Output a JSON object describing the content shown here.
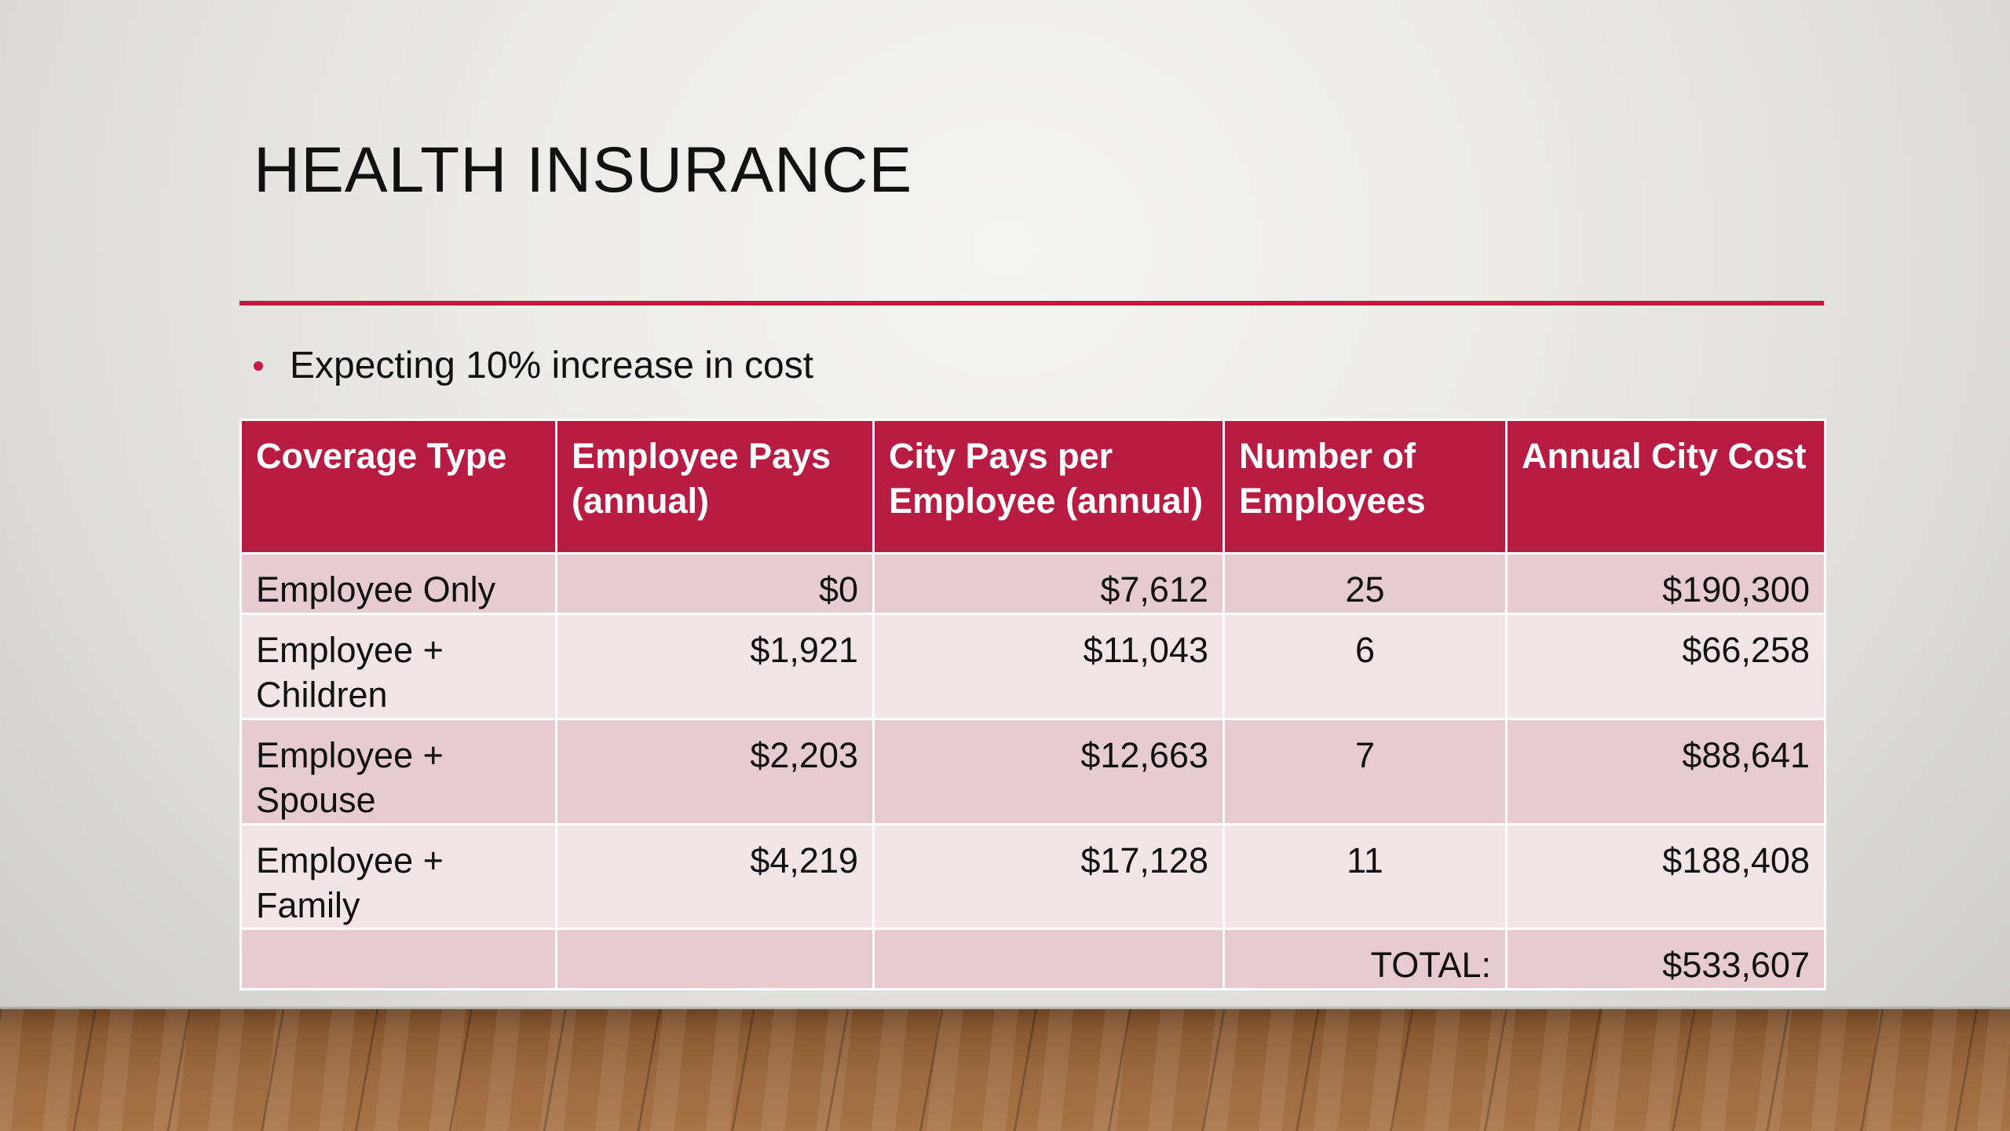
{
  "slide": {
    "title": "HEALTH INSURANCE",
    "bullet": "Expecting 10% increase in cost",
    "accent_color": "#c41a42"
  },
  "table": {
    "headers": [
      "Coverage Type",
      "Employee Pays (annual)",
      "City Pays per Employee (annual)",
      "Number of Employees",
      "Annual City Cost"
    ],
    "rows": [
      {
        "coverage": "Employee Only",
        "employee_pays": "$0",
        "city_pays": "$7,612",
        "count": "25",
        "annual_cost": "$190,300"
      },
      {
        "coverage": "Employee + Children",
        "employee_pays": "$1,921",
        "city_pays": "$11,043",
        "count": "6",
        "annual_cost": "$66,258"
      },
      {
        "coverage": "Employee + Spouse",
        "employee_pays": "$2,203",
        "city_pays": "$12,663",
        "count": "7",
        "annual_cost": "$88,641"
      },
      {
        "coverage": "Employee + Family",
        "employee_pays": "$4,219",
        "city_pays": "$17,128",
        "count": "11",
        "annual_cost": "$188,408"
      }
    ],
    "total_label": "TOTAL:",
    "total_value": "$533,607",
    "header_color": "#b81c42",
    "row_dark_color": "#e6ccd1",
    "row_light_color": "#f2e5e8"
  }
}
